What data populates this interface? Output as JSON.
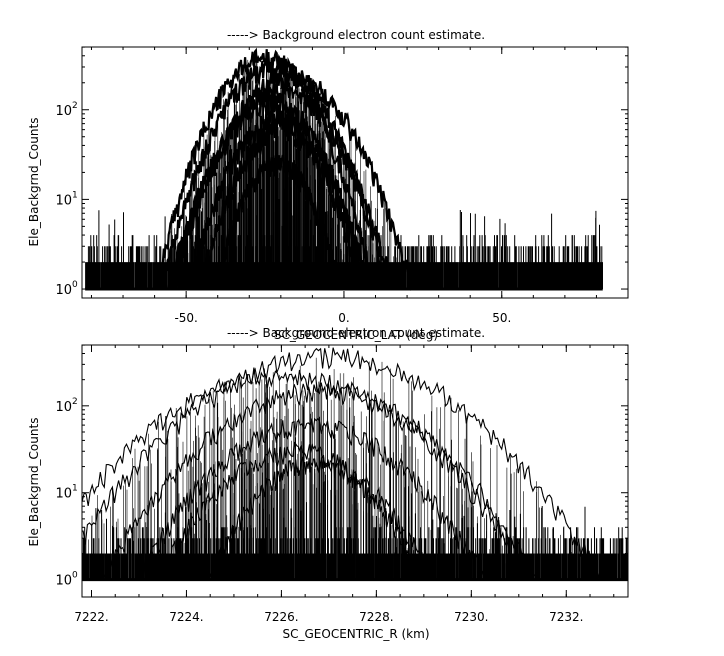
{
  "chart_data": [
    {
      "type": "line",
      "title": "-----> Background electron count estimate.",
      "xlabel": "SC_GEOCENTRIC_LAT (deg)",
      "ylabel": "Ele_Backgrnd_Counts",
      "xlim": [
        -83,
        90
      ],
      "ylim_log10": [
        -0.1,
        2.7
      ],
      "y_scale": "log",
      "x_ticks": [
        -50,
        0,
        50
      ],
      "x_tick_labels": [
        "-50.",
        "0.",
        "50."
      ],
      "y_ticks": [
        1,
        10,
        100
      ],
      "y_tick_labels": [
        "10",
        "10",
        "10"
      ],
      "y_tick_exponents": [
        "0",
        "1",
        "2"
      ],
      "data_x_range": [
        -82,
        82
      ],
      "series": [
        {
          "center": -25,
          "width": 18,
          "peak": 380
        },
        {
          "center": -22,
          "width": 19,
          "peak": 300
        },
        {
          "center": -17,
          "width": 21,
          "peak": 230
        },
        {
          "center": -20,
          "width": 20,
          "peak": 160
        },
        {
          "center": -23,
          "width": 18,
          "peak": 120
        },
        {
          "center": -21,
          "width": 17,
          "peak": 80
        },
        {
          "center": -20,
          "width": 16,
          "peak": 60
        },
        {
          "center": -21,
          "width": 14,
          "peak": 25
        }
      ],
      "noise_floor": [
        1,
        3
      ]
    },
    {
      "type": "line",
      "title": "-----> Background electron count estimate.",
      "xlabel": "SC_GEOCENTRIC_R (km)",
      "ylabel": "Ele_Backgrnd_Counts",
      "xlim": [
        7221.8,
        7233.3
      ],
      "ylim_log10": [
        -0.2,
        2.7
      ],
      "y_scale": "log",
      "x_ticks": [
        7222,
        7224,
        7226,
        7228,
        7230,
        7232
      ],
      "x_tick_labels": [
        "7222.",
        "7224.",
        "7226.",
        "7228.",
        "7230.",
        "7232."
      ],
      "y_ticks": [
        1,
        10,
        100
      ],
      "y_tick_labels": [
        "10",
        "10",
        "10"
      ],
      "y_tick_exponents": [
        "0",
        "1",
        "2"
      ],
      "data_x_range": [
        7221.8,
        7233.3
      ],
      "series": [
        {
          "center": 7227.0,
          "width": 3.0,
          "peak": 370
        },
        {
          "center": 7226.0,
          "width": 2.9,
          "peak": 220
        },
        {
          "center": 7226.8,
          "width": 2.6,
          "peak": 150
        },
        {
          "center": 7226.6,
          "width": 2.3,
          "peak": 60
        },
        {
          "center": 7226.3,
          "width": 2.0,
          "peak": 30
        },
        {
          "center": 7226.7,
          "width": 1.6,
          "peak": 22
        }
      ],
      "noise_floor": [
        1,
        3
      ]
    }
  ]
}
